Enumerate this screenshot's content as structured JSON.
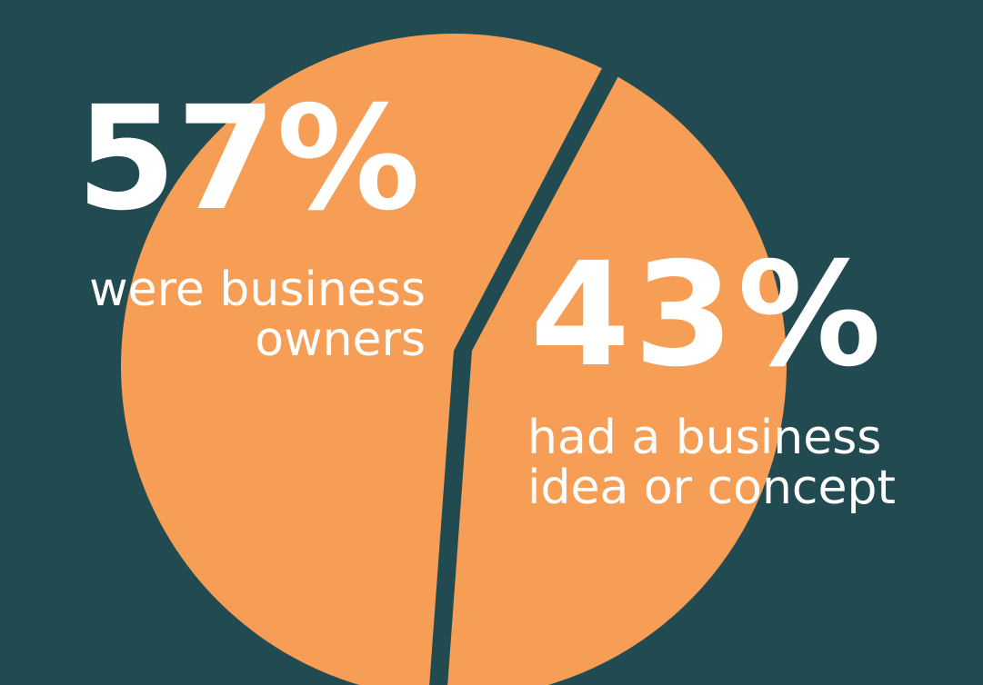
{
  "colors": {
    "background": "#214A51",
    "slice": "#F69E56",
    "text": "#FFFFFF"
  },
  "chart_data": {
    "type": "pie",
    "values": [
      57,
      43
    ],
    "labels": [
      {
        "value": "57%",
        "caption": [
          "were business",
          "owners"
        ]
      },
      {
        "value": "43%",
        "caption": [
          "had a business",
          "idea or concept"
        ]
      }
    ]
  }
}
